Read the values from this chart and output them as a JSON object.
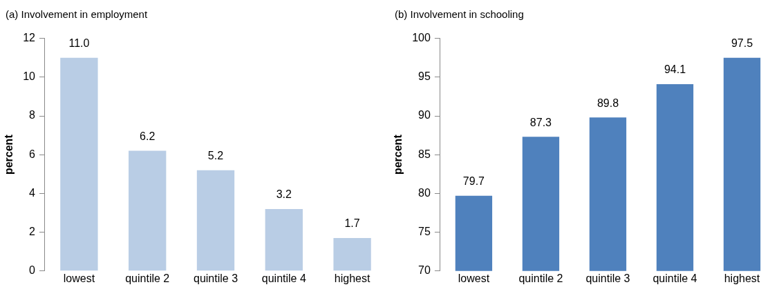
{
  "chart_data": [
    {
      "type": "bar",
      "title": "(a) Involvement in employment",
      "ylabel": "percent",
      "categories": [
        "lowest",
        "quintile 2",
        "quintile 3",
        "quintile 4",
        "highest"
      ],
      "values": [
        11.0,
        6.2,
        5.2,
        3.2,
        1.7
      ],
      "value_labels": [
        "11.0",
        "6.2",
        "5.2",
        "3.2",
        "1.7"
      ],
      "color": "#b9cde5",
      "ylim": [
        0,
        12
      ],
      "yticks": [
        0,
        2,
        4,
        6,
        8,
        10,
        12
      ],
      "grid": false,
      "legend": false
    },
    {
      "type": "bar",
      "title": "(b) Involvement in schooling",
      "ylabel": "percent",
      "categories": [
        "lowest",
        "quintile 2",
        "quintile 3",
        "quintile 4",
        "highest"
      ],
      "values": [
        79.7,
        87.3,
        89.8,
        94.1,
        97.5
      ],
      "value_labels": [
        "79.7",
        "87.3",
        "89.8",
        "94.1",
        "97.5"
      ],
      "color": "#4f81bd",
      "ylim": [
        70,
        100
      ],
      "yticks": [
        70,
        75,
        80,
        85,
        90,
        95,
        100
      ],
      "grid": false,
      "legend": false
    }
  ]
}
